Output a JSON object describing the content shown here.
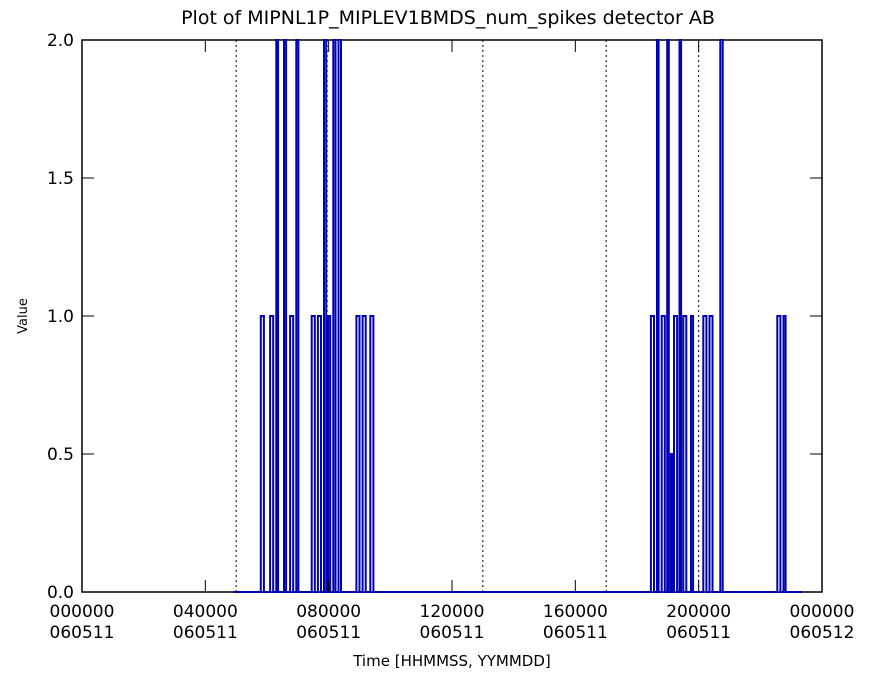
{
  "chart_data": {
    "type": "line",
    "title": "Plot of  MIPNL1P_MIPLEV1BMDS_num_spikes detector AB",
    "xlabel": "Time [HHMMSS, YYMMDD]",
    "ylabel": "Value",
    "xlim": [
      0,
      24
    ],
    "ylim": [
      0,
      2
    ],
    "x_unit": "hours since 000000 060511",
    "x_ticks": [
      {
        "x": 0,
        "time": "000000",
        "date": "060511"
      },
      {
        "x": 4,
        "time": "040000",
        "date": "060511"
      },
      {
        "x": 8,
        "time": "080000",
        "date": "060511"
      },
      {
        "x": 12,
        "time": "120000",
        "date": "060511"
      },
      {
        "x": 16,
        "time": "160000",
        "date": "060511"
      },
      {
        "x": 20,
        "time": "200000",
        "date": "060511"
      },
      {
        "x": 24,
        "time": "000000",
        "date": "060512"
      }
    ],
    "y_ticks": [
      "0.0",
      "0.5",
      "1.0",
      "1.5",
      "2.0"
    ],
    "y_tick_values": [
      0,
      0.5,
      1,
      1.5,
      2
    ],
    "vertical_dashed_lines": [
      5.0,
      7.95,
      13.0,
      17.0,
      20.0
    ],
    "series": [
      {
        "color": "#0000b4",
        "points": [
          [
            4.9,
            0
          ],
          [
            5.25,
            0
          ],
          [
            5.8,
            0
          ],
          [
            5.8,
            1
          ],
          [
            5.9,
            1
          ],
          [
            5.9,
            0
          ],
          [
            6.1,
            0
          ],
          [
            6.1,
            1
          ],
          [
            6.2,
            1
          ],
          [
            6.2,
            0
          ],
          [
            6.3,
            0
          ],
          [
            6.3,
            2
          ],
          [
            6.36,
            2
          ],
          [
            6.36,
            0
          ],
          [
            6.55,
            0
          ],
          [
            6.55,
            2
          ],
          [
            6.62,
            2
          ],
          [
            6.62,
            0
          ],
          [
            6.75,
            0
          ],
          [
            6.75,
            1
          ],
          [
            6.85,
            1
          ],
          [
            6.85,
            0
          ],
          [
            6.95,
            0
          ],
          [
            6.95,
            2
          ],
          [
            7.02,
            2
          ],
          [
            7.02,
            0
          ],
          [
            7.45,
            0
          ],
          [
            7.45,
            1
          ],
          [
            7.55,
            1
          ],
          [
            7.55,
            0
          ],
          [
            7.65,
            0
          ],
          [
            7.65,
            1
          ],
          [
            7.75,
            1
          ],
          [
            7.75,
            0
          ],
          [
            7.85,
            0
          ],
          [
            7.85,
            2
          ],
          [
            7.92,
            2
          ],
          [
            7.92,
            0
          ],
          [
            7.98,
            0
          ],
          [
            7.98,
            1
          ],
          [
            8.05,
            1
          ],
          [
            8.05,
            0
          ],
          [
            8.15,
            0
          ],
          [
            8.15,
            2
          ],
          [
            8.22,
            2
          ],
          [
            8.22,
            0
          ],
          [
            8.32,
            0
          ],
          [
            8.32,
            2
          ],
          [
            8.4,
            2
          ],
          [
            8.4,
            0
          ],
          [
            8.9,
            0
          ],
          [
            8.9,
            1
          ],
          [
            9.0,
            1
          ],
          [
            9.0,
            0
          ],
          [
            9.1,
            0
          ],
          [
            9.1,
            1
          ],
          [
            9.2,
            1
          ],
          [
            9.2,
            0
          ],
          [
            9.35,
            0
          ],
          [
            9.35,
            1
          ],
          [
            9.45,
            1
          ],
          [
            9.45,
            0
          ],
          [
            9.6,
            0
          ],
          [
            18.45,
            0
          ],
          [
            18.45,
            1
          ],
          [
            18.55,
            1
          ],
          [
            18.55,
            0
          ],
          [
            18.65,
            0
          ],
          [
            18.65,
            2
          ],
          [
            18.7,
            2
          ],
          [
            18.7,
            0
          ],
          [
            18.8,
            0
          ],
          [
            18.8,
            1
          ],
          [
            18.9,
            1
          ],
          [
            18.9,
            0
          ],
          [
            18.98,
            0
          ],
          [
            18.98,
            2
          ],
          [
            19.03,
            2
          ],
          [
            19.03,
            0
          ],
          [
            19.1,
            0
          ],
          [
            19.1,
            0.5
          ],
          [
            19.15,
            0.5
          ],
          [
            19.15,
            0
          ],
          [
            19.2,
            0
          ],
          [
            19.2,
            1
          ],
          [
            19.3,
            1
          ],
          [
            19.3,
            0
          ],
          [
            19.38,
            0
          ],
          [
            19.38,
            2
          ],
          [
            19.43,
            2
          ],
          [
            19.43,
            0
          ],
          [
            19.5,
            0
          ],
          [
            19.5,
            1
          ],
          [
            19.6,
            1
          ],
          [
            19.6,
            0
          ],
          [
            19.75,
            0
          ],
          [
            19.75,
            1
          ],
          [
            19.82,
            1
          ],
          [
            19.82,
            0
          ],
          [
            20.15,
            0
          ],
          [
            20.15,
            1
          ],
          [
            20.25,
            1
          ],
          [
            20.25,
            0
          ],
          [
            20.35,
            0
          ],
          [
            20.35,
            1
          ],
          [
            20.45,
            1
          ],
          [
            20.45,
            0
          ],
          [
            20.7,
            0
          ],
          [
            20.7,
            2
          ],
          [
            20.78,
            2
          ],
          [
            20.78,
            0
          ],
          [
            20.9,
            0
          ],
          [
            22.45,
            0
          ],
          [
            22.55,
            0
          ],
          [
            22.55,
            1
          ],
          [
            22.65,
            1
          ],
          [
            22.65,
            0
          ],
          [
            22.75,
            0
          ],
          [
            22.75,
            1
          ],
          [
            22.82,
            1
          ],
          [
            22.82,
            0
          ],
          [
            23.35,
            0
          ]
        ]
      }
    ]
  }
}
